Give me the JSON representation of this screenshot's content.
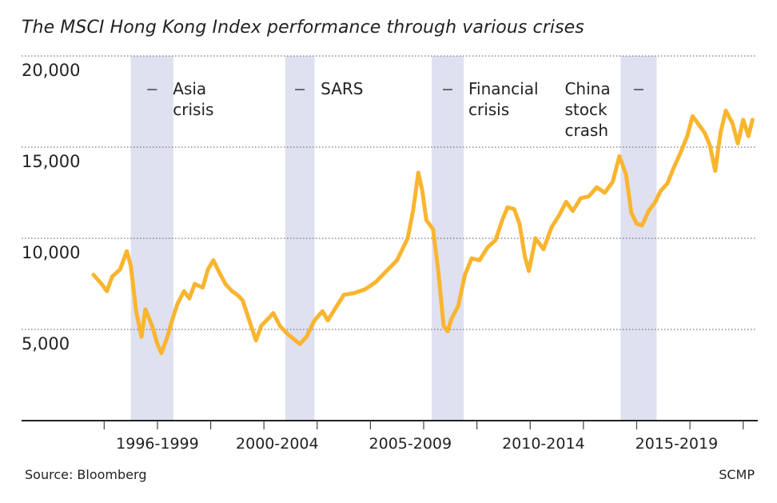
{
  "chart_data": {
    "type": "line",
    "title": "The MSCI Hong Kong Index performance through various crises",
    "source": "Source: Bloomberg",
    "credit": "SCMP",
    "xlabel": "",
    "ylabel": "",
    "x_range": [
      1995.6,
      2020.4
    ],
    "ylim": [
      0,
      20000
    ],
    "y_ticks": [
      {
        "value": 20000,
        "label": "20,000"
      },
      {
        "value": 15000,
        "label": "15,000"
      },
      {
        "value": 10000,
        "label": "10,000"
      },
      {
        "value": 5000,
        "label": "5,000"
      }
    ],
    "x_groups": [
      {
        "label": "1996-1999",
        "center": 1998.0
      },
      {
        "label": "2000-2004",
        "center": 2002.5
      },
      {
        "label": "2005-2009",
        "center": 2007.5
      },
      {
        "label": "2010-2014",
        "center": 2012.5
      },
      {
        "label": "2015-2019",
        "center": 2017.5
      }
    ],
    "x_ticks": [
      1996,
      1998,
      2000,
      2002,
      2004,
      2006,
      2008,
      2010,
      2012,
      2014,
      2016,
      2018,
      2020
    ],
    "grid": "dotted horizontal",
    "line_color": "#f9b52f",
    "band_color": "#dfe0f0",
    "crises": [
      {
        "label": [
          "Asia",
          "crisis"
        ],
        "start": 1997.0,
        "end": 1998.6
      },
      {
        "label": [
          "SARS"
        ],
        "start": 2002.8,
        "end": 2003.9
      },
      {
        "label": [
          "Financial",
          "crisis"
        ],
        "start": 2008.3,
        "end": 2009.5
      },
      {
        "label": [
          "China",
          "stock",
          "crash"
        ],
        "start": 2015.4,
        "end": 2016.75
      }
    ],
    "series": [
      {
        "name": "",
        "points": [
          [
            1995.6,
            8000
          ],
          [
            1995.9,
            7500
          ],
          [
            1996.1,
            7100
          ],
          [
            1996.3,
            7900
          ],
          [
            1996.6,
            8300
          ],
          [
            1996.85,
            9300
          ],
          [
            1997.0,
            8500
          ],
          [
            1997.2,
            6000
          ],
          [
            1997.4,
            4600
          ],
          [
            1997.55,
            6100
          ],
          [
            1997.8,
            5200
          ],
          [
            1998.0,
            4200
          ],
          [
            1998.15,
            3700
          ],
          [
            1998.35,
            4500
          ],
          [
            1998.55,
            5500
          ],
          [
            1998.75,
            6400
          ],
          [
            1999.0,
            7100
          ],
          [
            1999.2,
            6700
          ],
          [
            1999.4,
            7500
          ],
          [
            1999.7,
            7300
          ],
          [
            1999.9,
            8300
          ],
          [
            2000.1,
            8800
          ],
          [
            2000.3,
            8200
          ],
          [
            2000.55,
            7500
          ],
          [
            2000.8,
            7100
          ],
          [
            2001.0,
            6900
          ],
          [
            2001.2,
            6600
          ],
          [
            2001.45,
            5500
          ],
          [
            2001.7,
            4400
          ],
          [
            2001.9,
            5200
          ],
          [
            2002.1,
            5500
          ],
          [
            2002.35,
            5900
          ],
          [
            2002.6,
            5200
          ],
          [
            2002.85,
            4800
          ],
          [
            2003.1,
            4500
          ],
          [
            2003.35,
            4200
          ],
          [
            2003.6,
            4600
          ],
          [
            2003.9,
            5500
          ],
          [
            2004.2,
            6000
          ],
          [
            2004.4,
            5500
          ],
          [
            2004.7,
            6200
          ],
          [
            2005.0,
            6900
          ],
          [
            2005.4,
            7000
          ],
          [
            2005.8,
            7200
          ],
          [
            2006.2,
            7600
          ],
          [
            2006.6,
            8200
          ],
          [
            2007.0,
            8800
          ],
          [
            2007.4,
            10000
          ],
          [
            2007.6,
            11500
          ],
          [
            2007.8,
            13600
          ],
          [
            2007.95,
            12600
          ],
          [
            2008.1,
            11000
          ],
          [
            2008.35,
            10500
          ],
          [
            2008.55,
            8200
          ],
          [
            2008.75,
            5200
          ],
          [
            2008.9,
            4900
          ],
          [
            2009.05,
            5600
          ],
          [
            2009.3,
            6300
          ],
          [
            2009.55,
            8000
          ],
          [
            2009.8,
            8900
          ],
          [
            2010.1,
            8800
          ],
          [
            2010.4,
            9500
          ],
          [
            2010.7,
            9900
          ],
          [
            2010.95,
            11000
          ],
          [
            2011.15,
            11700
          ],
          [
            2011.4,
            11600
          ],
          [
            2011.6,
            10800
          ],
          [
            2011.8,
            9000
          ],
          [
            2011.95,
            8200
          ],
          [
            2012.2,
            10000
          ],
          [
            2012.5,
            9400
          ],
          [
            2012.8,
            10600
          ],
          [
            2013.1,
            11300
          ],
          [
            2013.35,
            12000
          ],
          [
            2013.6,
            11500
          ],
          [
            2013.9,
            12200
          ],
          [
            2014.2,
            12300
          ],
          [
            2014.5,
            12800
          ],
          [
            2014.8,
            12500
          ],
          [
            2015.1,
            13100
          ],
          [
            2015.35,
            14500
          ],
          [
            2015.6,
            13500
          ],
          [
            2015.8,
            11400
          ],
          [
            2016.0,
            10800
          ],
          [
            2016.2,
            10700
          ],
          [
            2016.45,
            11500
          ],
          [
            2016.7,
            12000
          ],
          [
            2016.9,
            12600
          ],
          [
            2017.15,
            13000
          ],
          [
            2017.4,
            13900
          ],
          [
            2017.65,
            14700
          ],
          [
            2017.9,
            15600
          ],
          [
            2018.1,
            16700
          ],
          [
            2018.3,
            16300
          ],
          [
            2018.55,
            15800
          ],
          [
            2018.75,
            15100
          ],
          [
            2018.95,
            13700
          ],
          [
            2019.15,
            15800
          ],
          [
            2019.35,
            17000
          ],
          [
            2019.6,
            16300
          ],
          [
            2019.8,
            15200
          ],
          [
            2020.0,
            16500
          ],
          [
            2020.2,
            15600
          ],
          [
            2020.35,
            16500
          ]
        ]
      }
    ]
  }
}
